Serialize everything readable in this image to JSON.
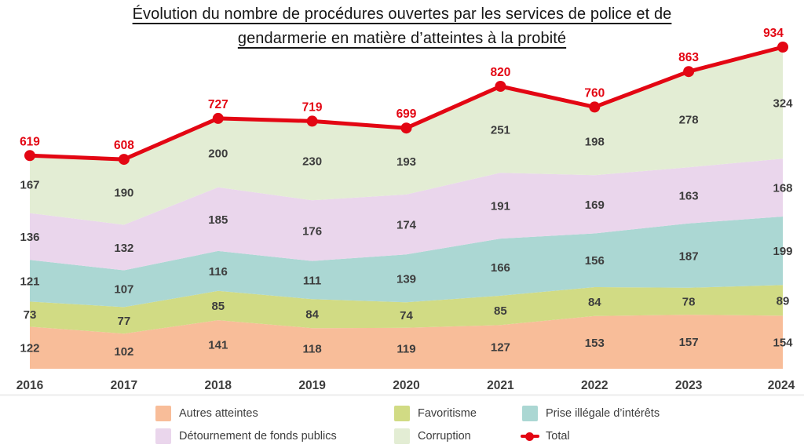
{
  "header": {
    "title_lines": [
      "Évolution du nombre de procédures ouvertes par les services de police et de",
      "gendarmerie en matière d’atteintes à la probité"
    ]
  },
  "chart_data": {
    "type": "area",
    "stacked": true,
    "title": "Évolution du nombre de procédures ouvertes par les services de police et de gendarmerie en matière d’atteintes à la probité",
    "xlabel": "",
    "ylabel": "",
    "ylim": [
      0,
      990
    ],
    "grid": false,
    "legend_position": "bottom",
    "categories": [
      "2016",
      "2017",
      "2018",
      "2019",
      "2020",
      "2021",
      "2022",
      "2023",
      "2024"
    ],
    "series": [
      {
        "key": "autres-atteintes",
        "name": "Autres atteintes",
        "color": "#F8BD99",
        "values": [
          122,
          102,
          141,
          118,
          119,
          127,
          153,
          157,
          154
        ]
      },
      {
        "key": "favoritisme",
        "name": "Favoritisme",
        "color": "#D1DB84",
        "values": [
          73,
          77,
          85,
          84,
          74,
          85,
          84,
          78,
          89
        ]
      },
      {
        "key": "prise-illegale-interets",
        "name": "Prise illégale d’intérêts",
        "color": "#ABD7D3",
        "values": [
          121,
          107,
          116,
          111,
          139,
          166,
          156,
          187,
          199
        ]
      },
      {
        "key": "detournement-fonds-publics",
        "name": "Détournement de fonds publics",
        "color": "#EAD6EC",
        "values": [
          136,
          132,
          185,
          176,
          174,
          191,
          169,
          163,
          168
        ]
      },
      {
        "key": "corruption",
        "name": "Corruption",
        "color": "#E3EDD4",
        "values": [
          167,
          190,
          200,
          230,
          193,
          251,
          198,
          278,
          324
        ]
      }
    ],
    "total": {
      "key": "total",
      "name": "Total",
      "color": "#E30613",
      "values": [
        619,
        608,
        727,
        719,
        699,
        820,
        760,
        863,
        934
      ]
    },
    "label_color": "#3D3D3D",
    "divider_color": "#ECECEC"
  }
}
